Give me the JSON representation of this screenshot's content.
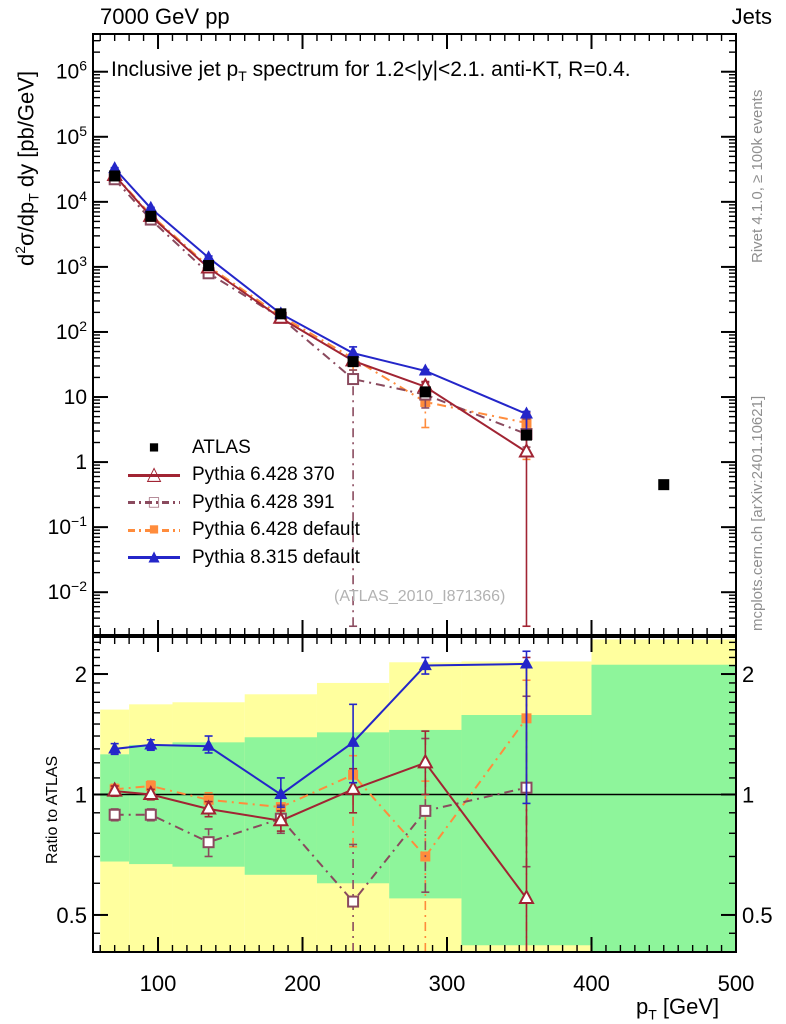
{
  "header": {
    "left": "7000 GeV pp",
    "right": "Jets"
  },
  "title_parts": {
    "a": "Inclusive jet p",
    "sub": "T",
    "b": " spectrum for 1.2<|y|<2.1.  anti-KT, R=0.4."
  },
  "axis": {
    "ylabel_d": "d",
    "ylabel_exp": "2",
    "ylabel_mid": "σ/dp",
    "ylabel_sub": "T",
    "ylabel_rest": " dy [pb/GeV]",
    "ratio_ylabel": "Ratio to ATLAS",
    "xlabel_main": "p",
    "xlabel_sub": "T",
    "xlabel_rest": " [GeV]"
  },
  "side_notes": {
    "top": "Rivet 4.1.0, ≥ 100k events",
    "bottom": "mcplots.cern.ch [arXiv:2401.10621]"
  },
  "watermark": "(ATLAS_2010_I871366)",
  "legend": {
    "items": [
      {
        "label": "ATLAS",
        "marker": "square",
        "filled": true,
        "color": "#000000",
        "line": "none"
      },
      {
        "label": "Pythia 6.428 370",
        "marker": "triangle",
        "filled": false,
        "color": "#a12433",
        "line": "solid"
      },
      {
        "label": "Pythia 6.428 391",
        "marker": "square",
        "filled": false,
        "color": "#8a4a5e",
        "line": "dashdot"
      },
      {
        "label": "Pythia 6.428 default",
        "marker": "square",
        "filled": true,
        "color": "#ff8c3c",
        "line": "dashdot"
      },
      {
        "label": "Pythia 8.315 default",
        "marker": "triangle",
        "filled": true,
        "color": "#2426c9",
        "line": "solid"
      }
    ]
  },
  "chart_data": {
    "type": "line",
    "title": "Inclusive jet pT spectrum for 1.2<|y|<2.1.  anti-KT, R=0.4.",
    "xlabel": "pT [GeV]",
    "ylabel": "d2sigma/dpT dy [pb/GeV]",
    "legend_position": "middle-left",
    "xlim": [
      55,
      500
    ],
    "xticks": [
      100,
      200,
      300,
      400,
      500
    ],
    "xtick_minor_step": 10,
    "x": [
      70,
      95,
      135,
      185,
      235,
      285,
      355
    ],
    "bin_edges": [
      60,
      80,
      110,
      160,
      210,
      260,
      310,
      400,
      500
    ],
    "main": {
      "ylog": true,
      "ylim": [
        0.0022,
        3800000
      ],
      "ytick_exponents": [
        6,
        5,
        4,
        3,
        2,
        1,
        0,
        -1,
        -2
      ],
      "atlas": {
        "name": "ATLAS",
        "color": "#000000",
        "marker": "square",
        "filled": true,
        "x": [
          70,
          95,
          135,
          185,
          235,
          285,
          355,
          450
        ],
        "y": [
          25000,
          6000,
          1050,
          190,
          35,
          12,
          2.6,
          0.45
        ]
      },
      "series": [
        {
          "name": "Pythia 6.428 default",
          "color": "#ff8c3c",
          "line": "dashdot",
          "marker": "square",
          "filled": true,
          "y": [
            25750,
            6300,
            1019,
            177,
            39.2,
            8.4,
            4.0
          ],
          "err": [
            [
              25000,
              26500
            ],
            [
              6120,
              6480
            ],
            [
              977,
              1061
            ],
            [
              165,
              188
            ],
            [
              26,
              44
            ],
            [
              3.4,
              13
            ],
            [
              1.1,
              5.0
            ]
          ]
        },
        {
          "name": "Pythia 6.428 391",
          "color": "#8a4a5e",
          "line": "dashdot",
          "marker": "square",
          "filled": false,
          "y": [
            22250,
            5340,
            798,
            165,
            18.9,
            10.9,
            2.7
          ],
          "err": [
            [
              21500,
              23000
            ],
            [
              5160,
              5520
            ],
            [
              735,
              861
            ],
            [
              152,
              179
            ],
            [
              0.003,
              26
            ],
            [
              6.8,
              16.6
            ],
            [
              1.7,
              4.6
            ]
          ]
        },
        {
          "name": "Pythia 6.428 370",
          "color": "#a12433",
          "line": "solid",
          "marker": "triangle",
          "filled": false,
          "y": [
            25500,
            6000,
            966,
            163,
            36,
            14.4,
            1.43
          ],
          "err": [
            [
              24700,
              26300
            ],
            [
              5820,
              6180
            ],
            [
              924,
              1008
            ],
            [
              154,
              173
            ],
            [
              31,
              41
            ],
            [
              12,
              17.3
            ],
            [
              0.003,
              5.7
            ]
          ]
        },
        {
          "name": "Pythia 8.315 default",
          "color": "#2426c9",
          "line": "solid",
          "marker": "triangle",
          "filled": true,
          "y": [
            32500,
            7980,
            1386,
            190,
            47.3,
            25.2,
            5.5
          ],
          "err": [
            [
              31500,
              33500
            ],
            [
              7740,
              8220
            ],
            [
              1330,
              1470
            ],
            [
              177,
              209
            ],
            [
              37,
              59
            ],
            [
              24,
              26.5
            ],
            [
              2.5,
              6.0
            ]
          ]
        }
      ]
    },
    "ratio": {
      "ylog": true,
      "ylim": [
        0.404,
        2.475
      ],
      "yticks_major": [
        0.5,
        1,
        2
      ],
      "ytick_labels": [
        "0.5",
        "1",
        "2"
      ],
      "baseline": 1,
      "bands": {
        "yellow_color": "#ffff9e",
        "green_color": "#8ef59b",
        "yellow_hi": [
          1.63,
          1.68,
          1.7,
          1.78,
          1.9,
          2.14,
          2.15,
          2.44
        ],
        "yellow_lo": [
          0.404,
          0.404,
          0.404,
          0.404,
          0.404,
          0.404,
          0.404,
          0.404
        ],
        "green_hi": [
          1.26,
          1.33,
          1.35,
          1.39,
          1.43,
          1.45,
          1.58,
          2.11
        ],
        "green_lo": [
          0.68,
          0.67,
          0.66,
          0.63,
          0.6,
          0.55,
          0.42,
          0.404
        ]
      },
      "series": [
        {
          "name": "Pythia 6.428 default",
          "r": [
            1.03,
            1.05,
            0.97,
            0.93,
            1.12,
            0.7,
            1.55
          ],
          "err": [
            [
              1.0,
              1.06
            ],
            [
              1.02,
              1.08
            ],
            [
              0.93,
              1.01
            ],
            [
              0.87,
              0.99
            ],
            [
              0.74,
              1.25
            ],
            [
              0.404,
              1.08
            ],
            [
              0.404,
              1.93
            ]
          ]
        },
        {
          "name": "Pythia 6.428 391",
          "r": [
            0.89,
            0.89,
            0.76,
            0.87,
            0.54,
            0.91,
            1.04
          ],
          "err": [
            [
              0.86,
              0.92
            ],
            [
              0.86,
              0.92
            ],
            [
              0.7,
              0.82
            ],
            [
              0.8,
              0.94
            ],
            [
              0.404,
              0.75
            ],
            [
              0.57,
              1.38
            ],
            [
              0.66,
              1.76
            ]
          ]
        },
        {
          "name": "Pythia 6.428 370",
          "r": [
            1.02,
            1.0,
            0.92,
            0.86,
            1.03,
            1.2,
            0.55
          ],
          "err": [
            [
              0.99,
              1.05
            ],
            [
              0.97,
              1.03
            ],
            [
              0.88,
              0.96
            ],
            [
              0.81,
              0.91
            ],
            [
              0.9,
              1.16
            ],
            [
              1.0,
              1.44
            ],
            [
              0.404,
              2.2
            ]
          ]
        },
        {
          "name": "Pythia 8.315 default",
          "r": [
            1.3,
            1.33,
            1.32,
            1.0,
            1.35,
            2.1,
            2.12
          ],
          "err": [
            [
              1.26,
              1.34
            ],
            [
              1.29,
              1.37
            ],
            [
              1.27,
              1.4
            ],
            [
              0.93,
              1.1
            ],
            [
              1.07,
              1.68
            ],
            [
              2.0,
              2.2
            ],
            [
              0.95,
              2.28
            ]
          ]
        }
      ]
    }
  }
}
